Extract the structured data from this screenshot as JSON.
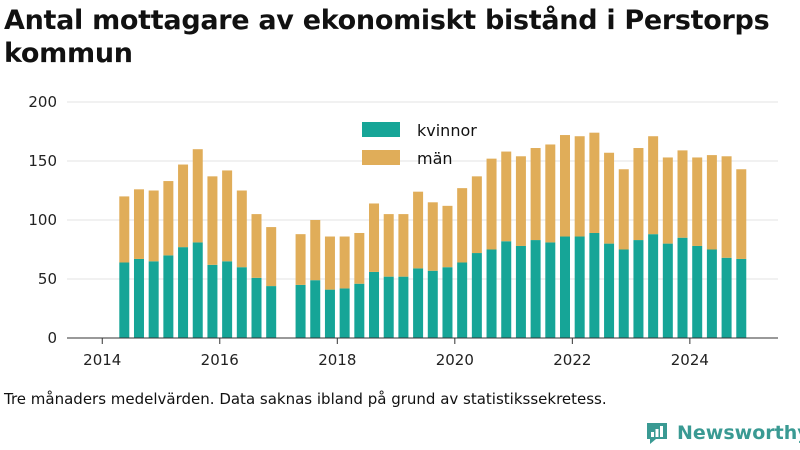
{
  "chart_data": {
    "type": "bar",
    "stacked": true,
    "title": "Antal mottagare av ekonomiskt bistånd i Perstorps kommun",
    "caption": "Tre månaders medelvärden. Data saknas ibland på grund av statistikssekretess.",
    "ylim": [
      0,
      200
    ],
    "yticks": [
      0,
      50,
      100,
      150,
      200
    ],
    "xlim": [
      2013.4,
      2025.5
    ],
    "xticks": [
      2014,
      2016,
      2018,
      2020,
      2022,
      2024
    ],
    "grid": true,
    "legend_position": "top-center",
    "x": [
      2014.375,
      2014.625,
      2014.875,
      2015.125,
      2015.375,
      2015.625,
      2015.875,
      2016.125,
      2016.375,
      2016.625,
      2016.875,
      2017.375,
      2017.625,
      2017.875,
      2018.125,
      2018.375,
      2018.625,
      2018.875,
      2019.125,
      2019.375,
      2019.625,
      2019.875,
      2020.125,
      2020.375,
      2020.625,
      2020.875,
      2021.125,
      2021.375,
      2021.625,
      2021.875,
      2022.125,
      2022.375,
      2022.625,
      2022.875,
      2023.125,
      2023.375,
      2023.625,
      2023.875,
      2024.125,
      2024.375,
      2024.625,
      2024.875
    ],
    "series": [
      {
        "name": "kvinnor",
        "color": "#16a597",
        "values": [
          64,
          67,
          65,
          70,
          77,
          81,
          62,
          65,
          60,
          51,
          44,
          45,
          49,
          41,
          42,
          46,
          56,
          52,
          52,
          59,
          57,
          60,
          64,
          72,
          75,
          82,
          78,
          83,
          81,
          86,
          86,
          89,
          80,
          75,
          83,
          88,
          80,
          85,
          78,
          75,
          68,
          67
        ]
      },
      {
        "name": "män",
        "color": "#e0ad59",
        "values": [
          56,
          59,
          60,
          63,
          70,
          79,
          75,
          77,
          65,
          54,
          50,
          43,
          51,
          45,
          44,
          43,
          58,
          53,
          53,
          65,
          58,
          52,
          63,
          65,
          77,
          76,
          76,
          78,
          83,
          86,
          85,
          85,
          77,
          68,
          78,
          83,
          73,
          74,
          75,
          80,
          86,
          76
        ]
      }
    ]
  },
  "brand": {
    "name": "Newsworthy"
  }
}
